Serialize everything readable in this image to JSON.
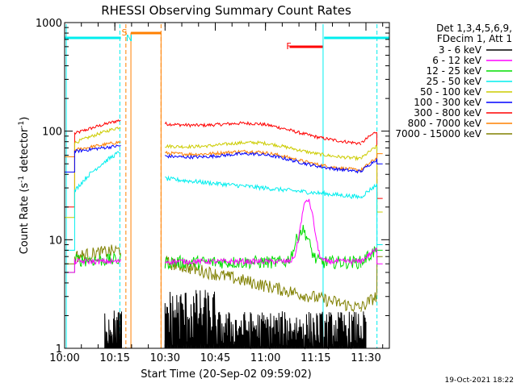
{
  "chart_data": {
    "type": "line",
    "title": "RHESSI Observing Summary Count Rates",
    "xlabel": "Start Time (20-Sep-02 09:59:02)",
    "ylabel_main": "Count Rate (s",
    "ylabel_sup": "-1",
    "ylabel_end": " detector",
    "ylabel_sup2": "-1",
    "ylabel_close": ")",
    "y_scale": "log",
    "ylim": [
      1,
      1000
    ],
    "xlim_minutes": [
      0,
      97
    ],
    "x_ticks": [
      {
        "label": "10:00",
        "min": 0
      },
      {
        "label": "10:15",
        "min": 15
      },
      {
        "label": "10:30",
        "min": 30
      },
      {
        "label": "10:45",
        "min": 45
      },
      {
        "label": "11:00",
        "min": 60
      },
      {
        "label": "11:15",
        "min": 75
      },
      {
        "label": "11:30",
        "min": 90
      }
    ],
    "y_ticks": [
      {
        "label": "1",
        "v": 1
      },
      {
        "label": "10",
        "v": 10
      },
      {
        "label": "100",
        "v": 100
      },
      {
        "label": "1000",
        "v": 1000
      }
    ],
    "legend_header": [
      "Det 1,3,4,5,6,9,",
      "FDecim 1, Att 1"
    ],
    "series": [
      {
        "name": "3 - 6 keV",
        "color": "#000000"
      },
      {
        "name": "6 - 12 keV",
        "color": "#ff00ff"
      },
      {
        "name": "12 - 25 keV",
        "color": "#00dd00"
      },
      {
        "name": "25 - 50 keV",
        "color": "#00eeee"
      },
      {
        "name": "50 - 100 keV",
        "color": "#cccc00"
      },
      {
        "name": "100 - 300 keV",
        "color": "#0000ff"
      },
      {
        "name": "300 - 800 keV",
        "color": "#ff0000"
      },
      {
        "name": "800 - 7000 keV",
        "color": "#ff8000"
      },
      {
        "name": "7000 - 15000 keV",
        "color": "#808000"
      }
    ],
    "annotations": [
      {
        "label": "S",
        "color": "#ff8000"
      },
      {
        "label": "N",
        "color": "#00eeee"
      },
      {
        "label": "F",
        "color": "#ff0000"
      }
    ],
    "footer_date": "19-Oct-2021 18:22"
  }
}
